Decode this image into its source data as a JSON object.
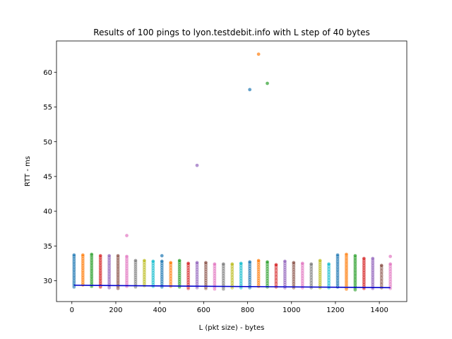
{
  "chart_data": {
    "type": "scatter",
    "title": "Results of 100 pings to lyon.testdebit.info with L step of 40 bytes",
    "xlabel": "L (pkt size) - bytes",
    "ylabel": "RTT - ms",
    "xlim": [
      -70,
      1525
    ],
    "ylim": [
      27,
      64.5
    ],
    "xticks": [
      0,
      200,
      400,
      600,
      800,
      1000,
      1200,
      1400
    ],
    "yticks": [
      30,
      35,
      40,
      45,
      50,
      55,
      60
    ],
    "grid": false,
    "legend": false,
    "palette": [
      "#1f77b4",
      "#ff7f0e",
      "#2ca02c",
      "#d62728",
      "#9467bd",
      "#8c564b",
      "#e377c2",
      "#7f7f7f",
      "#bcbd22",
      "#17becf"
    ],
    "series_x": [
      10,
      50,
      90,
      130,
      170,
      210,
      250,
      290,
      330,
      370,
      410,
      450,
      490,
      530,
      570,
      610,
      650,
      690,
      730,
      770,
      810,
      850,
      890,
      930,
      970,
      1010,
      1050,
      1090,
      1130,
      1170,
      1210,
      1250,
      1290,
      1330,
      1370,
      1410,
      1450
    ],
    "series_min": [
      29.1,
      29.4,
      29.2,
      29.1,
      29.0,
      28.9,
      29.2,
      29.1,
      29.3,
      29.2,
      29.1,
      29.2,
      29.1,
      28.9,
      29.0,
      28.9,
      28.8,
      28.8,
      29.0,
      29.0,
      29.0,
      29.2,
      29.1,
      29.1,
      29.0,
      29.0,
      29.0,
      29.0,
      29.0,
      29.0,
      29.1,
      28.8,
      28.7,
      28.9,
      28.9,
      29.0,
      28.9
    ],
    "series_max": [
      33.7,
      33.7,
      33.8,
      33.6,
      33.6,
      33.6,
      33.5,
      32.9,
      32.9,
      32.8,
      32.8,
      32.6,
      32.9,
      32.5,
      32.6,
      32.6,
      32.4,
      32.4,
      32.4,
      32.5,
      32.7,
      32.9,
      32.7,
      32.3,
      32.8,
      32.6,
      32.5,
      32.4,
      32.9,
      32.4,
      33.7,
      33.8,
      33.6,
      33.2,
      33.2,
      32.2,
      32.4
    ],
    "outliers": [
      {
        "x": 250,
        "y": 36.5
      },
      {
        "x": 410,
        "y": 33.6
      },
      {
        "x": 570,
        "y": 46.6
      },
      {
        "x": 810,
        "y": 57.5
      },
      {
        "x": 850,
        "y": 62.6
      },
      {
        "x": 890,
        "y": 58.4
      },
      {
        "x": 1450,
        "y": 33.5
      }
    ],
    "trend_line": {
      "color": "#0000cc",
      "x": [
        10,
        1450
      ],
      "y": [
        29.35,
        29.0
      ]
    }
  }
}
